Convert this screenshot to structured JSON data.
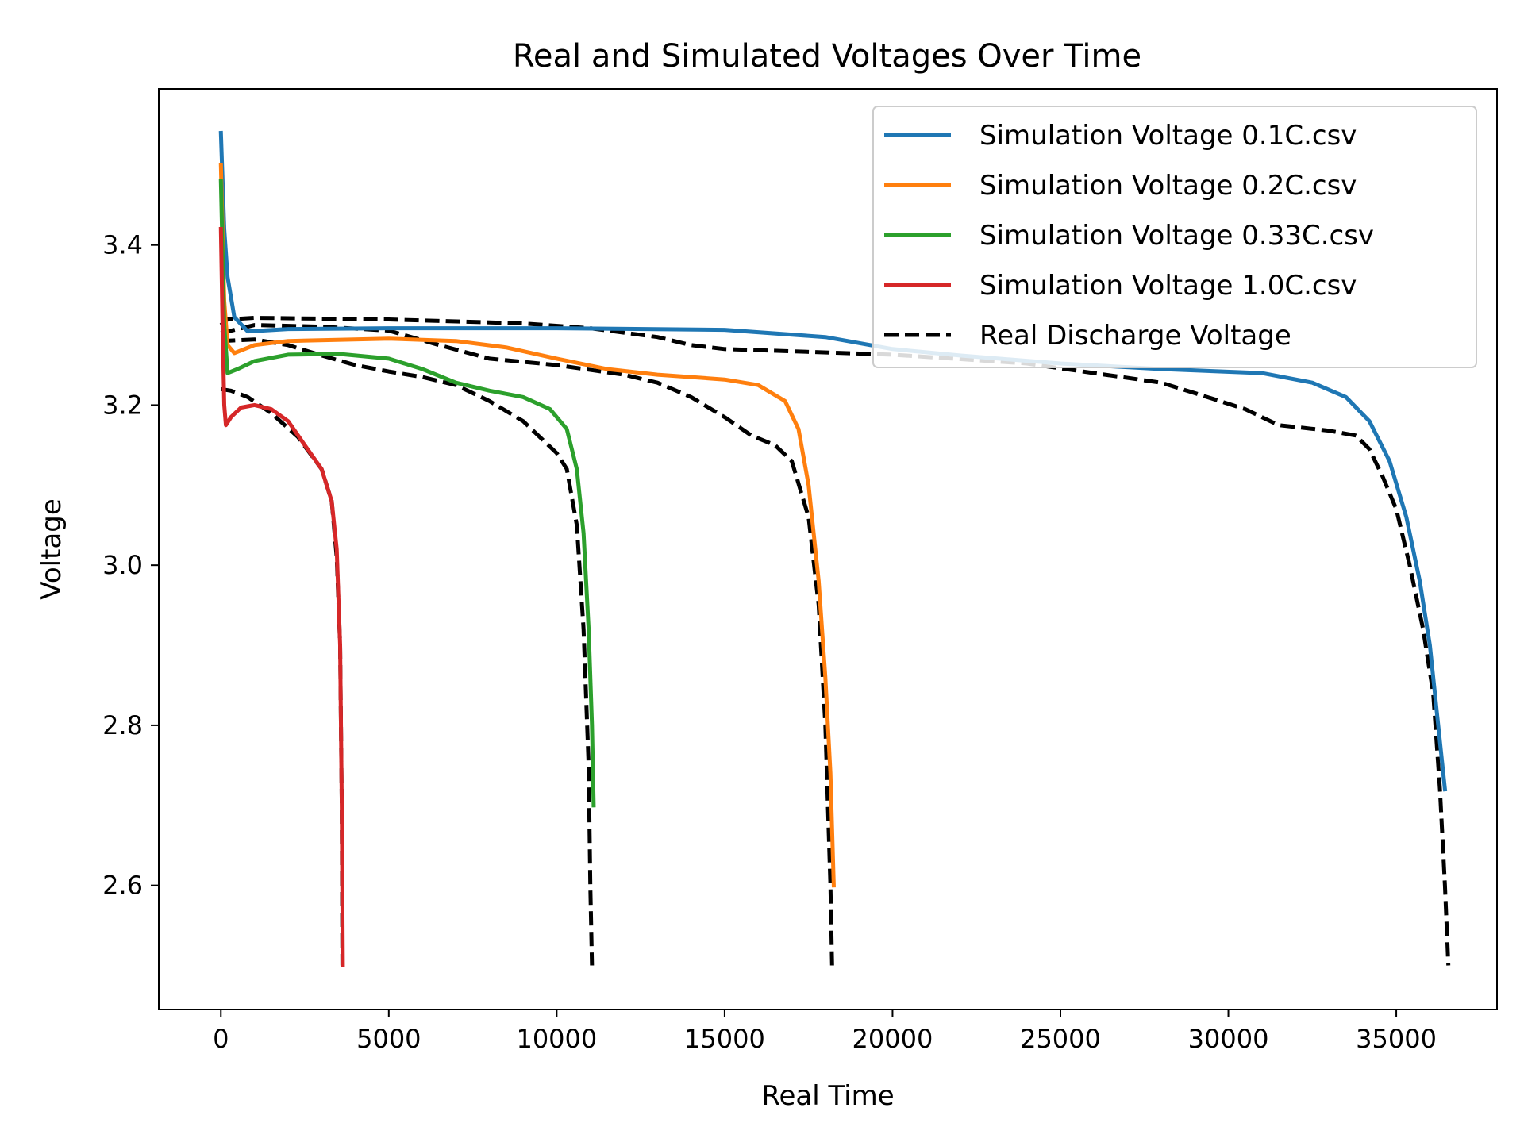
{
  "chart_data": {
    "type": "line",
    "title": "Real and Simulated Voltages Over Time",
    "xlabel": "Real Time",
    "ylabel": "Voltage",
    "xlim": [
      -1850,
      38000
    ],
    "ylim": [
      2.445,
      3.595
    ],
    "xticks": [
      0,
      5000,
      10000,
      15000,
      20000,
      25000,
      30000,
      35000
    ],
    "yticks": [
      2.6,
      2.8,
      3.0,
      3.2,
      3.4
    ],
    "xtick_labels": [
      "0",
      "5000",
      "10000",
      "15000",
      "20000",
      "25000",
      "30000",
      "35000"
    ],
    "ytick_labels": [
      "2.6",
      "2.8",
      "3.0",
      "3.2",
      "3.4"
    ],
    "grid": false,
    "legend_position": "top-right",
    "series": [
      {
        "name": "Simulation Voltage 0.1C.csv",
        "color": "#1f77b4",
        "style": "solid",
        "points": [
          [
            0,
            3.54
          ],
          [
            100,
            3.42
          ],
          [
            200,
            3.36
          ],
          [
            400,
            3.31
          ],
          [
            800,
            3.292
          ],
          [
            2000,
            3.295
          ],
          [
            5000,
            3.296
          ],
          [
            10000,
            3.296
          ],
          [
            15000,
            3.294
          ],
          [
            18000,
            3.285
          ],
          [
            20000,
            3.27
          ],
          [
            22000,
            3.262
          ],
          [
            25000,
            3.252
          ],
          [
            28000,
            3.245
          ],
          [
            31000,
            3.24
          ],
          [
            32500,
            3.228
          ],
          [
            33500,
            3.21
          ],
          [
            34200,
            3.18
          ],
          [
            34800,
            3.13
          ],
          [
            35300,
            3.06
          ],
          [
            35700,
            2.98
          ],
          [
            36000,
            2.9
          ],
          [
            36200,
            2.82
          ],
          [
            36450,
            2.72
          ]
        ]
      },
      {
        "name": "Simulation Voltage 0.2C.csv",
        "color": "#ff7f0e",
        "style": "solid",
        "points": [
          [
            0,
            3.5
          ],
          [
            100,
            3.33
          ],
          [
            200,
            3.275
          ],
          [
            400,
            3.265
          ],
          [
            1000,
            3.275
          ],
          [
            2000,
            3.28
          ],
          [
            5000,
            3.283
          ],
          [
            7000,
            3.28
          ],
          [
            8500,
            3.272
          ],
          [
            10000,
            3.258
          ],
          [
            11500,
            3.245
          ],
          [
            13000,
            3.238
          ],
          [
            15000,
            3.232
          ],
          [
            16000,
            3.225
          ],
          [
            16800,
            3.205
          ],
          [
            17200,
            3.17
          ],
          [
            17500,
            3.1
          ],
          [
            17800,
            2.98
          ],
          [
            18000,
            2.86
          ],
          [
            18150,
            2.74
          ],
          [
            18250,
            2.6
          ]
        ]
      },
      {
        "name": "Simulation Voltage 0.33C.csv",
        "color": "#2ca02c",
        "style": "solid",
        "points": [
          [
            0,
            3.48
          ],
          [
            100,
            3.3
          ],
          [
            200,
            3.24
          ],
          [
            500,
            3.245
          ],
          [
            1000,
            3.255
          ],
          [
            2000,
            3.263
          ],
          [
            3500,
            3.264
          ],
          [
            5000,
            3.258
          ],
          [
            6000,
            3.245
          ],
          [
            7000,
            3.228
          ],
          [
            8000,
            3.218
          ],
          [
            9000,
            3.21
          ],
          [
            9800,
            3.195
          ],
          [
            10300,
            3.17
          ],
          [
            10600,
            3.12
          ],
          [
            10800,
            3.04
          ],
          [
            10950,
            2.92
          ],
          [
            11050,
            2.8
          ],
          [
            11100,
            2.7
          ]
        ]
      },
      {
        "name": "Simulation Voltage 1.0C.csv",
        "color": "#d62728",
        "style": "solid",
        "points": [
          [
            0,
            3.42
          ],
          [
            50,
            3.3
          ],
          [
            100,
            3.2
          ],
          [
            150,
            3.175
          ],
          [
            300,
            3.185
          ],
          [
            600,
            3.197
          ],
          [
            1000,
            3.2
          ],
          [
            1500,
            3.195
          ],
          [
            2000,
            3.18
          ],
          [
            2500,
            3.15
          ],
          [
            3000,
            3.12
          ],
          [
            3300,
            3.08
          ],
          [
            3450,
            3.02
          ],
          [
            3550,
            2.9
          ],
          [
            3600,
            2.7
          ],
          [
            3630,
            2.5
          ]
        ]
      },
      {
        "name": "Real Discharge Voltage",
        "color": "#000000",
        "style": "dashed",
        "segments": [
          [
            [
              0,
              3.3
            ],
            [
              200,
              3.307
            ],
            [
              1000,
              3.309
            ],
            [
              5000,
              3.307
            ],
            [
              9000,
              3.302
            ],
            [
              11000,
              3.296
            ],
            [
              13000,
              3.285
            ],
            [
              14000,
              3.275
            ],
            [
              15000,
              3.27
            ],
            [
              20000,
              3.263
            ],
            [
              24000,
              3.252
            ],
            [
              26000,
              3.24
            ],
            [
              28000,
              3.228
            ],
            [
              29000,
              3.215
            ],
            [
              30500,
              3.195
            ],
            [
              31500,
              3.175
            ],
            [
              33000,
              3.168
            ],
            [
              33800,
              3.162
            ],
            [
              34200,
              3.145
            ],
            [
              34600,
              3.11
            ],
            [
              35000,
              3.07
            ],
            [
              35400,
              3.0
            ],
            [
              35800,
              2.92
            ],
            [
              36100,
              2.84
            ],
            [
              36300,
              2.72
            ],
            [
              36450,
              2.6
            ],
            [
              36550,
              2.5
            ]
          ],
          [
            [
              0,
              3.29
            ],
            [
              1000,
              3.3
            ],
            [
              3000,
              3.298
            ],
            [
              5000,
              3.293
            ],
            [
              6500,
              3.275
            ],
            [
              8000,
              3.258
            ],
            [
              10000,
              3.25
            ],
            [
              12000,
              3.238
            ],
            [
              13000,
              3.228
            ],
            [
              14000,
              3.21
            ],
            [
              15000,
              3.185
            ],
            [
              15800,
              3.162
            ],
            [
              16500,
              3.15
            ],
            [
              17000,
              3.13
            ],
            [
              17500,
              3.06
            ],
            [
              17800,
              2.95
            ],
            [
              18000,
              2.8
            ],
            [
              18150,
              2.6
            ],
            [
              18200,
              2.5
            ]
          ],
          [
            [
              0,
              3.28
            ],
            [
              1000,
              3.282
            ],
            [
              2000,
              3.275
            ],
            [
              3000,
              3.262
            ],
            [
              4000,
              3.25
            ],
            [
              5000,
              3.242
            ],
            [
              6000,
              3.235
            ],
            [
              7000,
              3.225
            ],
            [
              8000,
              3.205
            ],
            [
              9000,
              3.18
            ],
            [
              9500,
              3.16
            ],
            [
              10000,
              3.14
            ],
            [
              10300,
              3.12
            ],
            [
              10600,
              3.05
            ],
            [
              10800,
              2.92
            ],
            [
              10950,
              2.75
            ],
            [
              11000,
              2.6
            ],
            [
              11050,
              2.5
            ]
          ],
          [
            [
              0,
              3.22
            ],
            [
              300,
              3.218
            ],
            [
              800,
              3.21
            ],
            [
              1500,
              3.19
            ],
            [
              2300,
              3.16
            ],
            [
              3000,
              3.12
            ],
            [
              3300,
              3.08
            ],
            [
              3450,
              3.01
            ],
            [
              3550,
              2.9
            ],
            [
              3600,
              2.7
            ],
            [
              3620,
              2.5
            ]
          ]
        ]
      }
    ]
  }
}
